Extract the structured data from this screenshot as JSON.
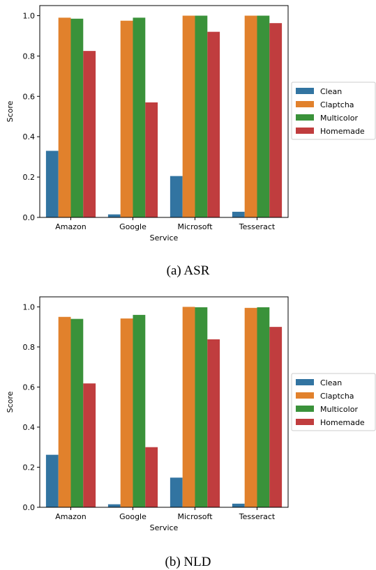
{
  "chart_data": [
    {
      "type": "bar",
      "caption": "(a) ASR",
      "xlabel": "Service",
      "ylabel": "Score",
      "categories": [
        "Amazon",
        "Google",
        "Microsoft",
        "Tesseract"
      ],
      "ylim": [
        0,
        1.05
      ],
      "yticks": [
        "0.0",
        "0.2",
        "0.4",
        "0.6",
        "0.8",
        "1.0"
      ],
      "legend_position": "right",
      "grid": false,
      "series": [
        {
          "name": "Clean",
          "color": "#3274a1",
          "values": [
            0.33,
            0.015,
            0.205,
            0.028
          ]
        },
        {
          "name": "Claptcha",
          "color": "#e1812c",
          "values": [
            0.99,
            0.975,
            1.0,
            1.0
          ]
        },
        {
          "name": "Multicolor",
          "color": "#3a923a",
          "values": [
            0.985,
            0.99,
            1.0,
            1.0
          ]
        },
        {
          "name": "Homemade",
          "color": "#c03d3e",
          "values": [
            0.825,
            0.57,
            0.92,
            0.963
          ]
        }
      ]
    },
    {
      "type": "bar",
      "caption": "(b) NLD",
      "xlabel": "Service",
      "ylabel": "Score",
      "categories": [
        "Amazon",
        "Google",
        "Microsoft",
        "Tesseract"
      ],
      "ylim": [
        0,
        1.05
      ],
      "yticks": [
        "0.0",
        "0.2",
        "0.4",
        "0.6",
        "0.8",
        "1.0"
      ],
      "legend_position": "right",
      "grid": false,
      "series": [
        {
          "name": "Clean",
          "color": "#3274a1",
          "values": [
            0.262,
            0.015,
            0.148,
            0.018
          ]
        },
        {
          "name": "Claptcha",
          "color": "#e1812c",
          "values": [
            0.95,
            0.942,
            1.0,
            0.995
          ]
        },
        {
          "name": "Multicolor",
          "color": "#3a923a",
          "values": [
            0.94,
            0.96,
            0.998,
            0.998
          ]
        },
        {
          "name": "Homemade",
          "color": "#c03d3e",
          "values": [
            0.618,
            0.3,
            0.838,
            0.9
          ]
        }
      ]
    }
  ]
}
